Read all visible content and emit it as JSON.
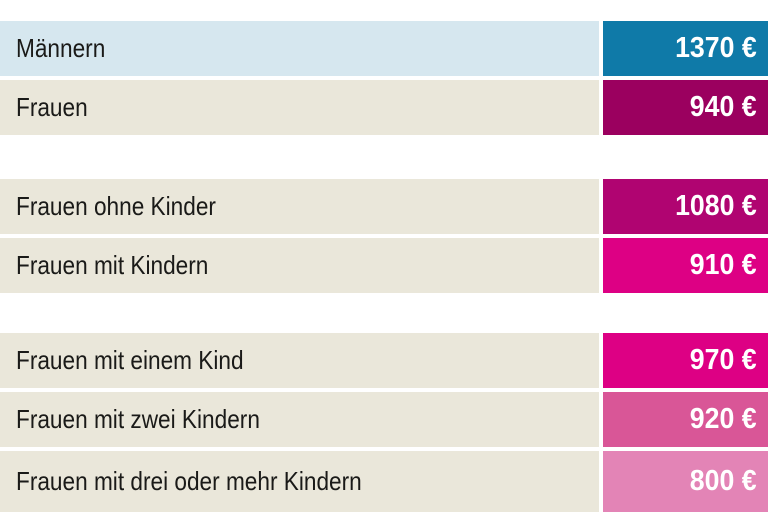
{
  "chart_data": {
    "type": "table",
    "title": "",
    "unit": "€",
    "groups": [
      {
        "rows": [
          {
            "label": "Männern",
            "value": 1370
          },
          {
            "label": "Frauen",
            "value": 940
          }
        ]
      },
      {
        "rows": [
          {
            "label": "Frauen ohne Kinder",
            "value": 1080
          },
          {
            "label": "Frauen mit Kindern",
            "value": 910
          }
        ]
      },
      {
        "rows": [
          {
            "label": "Frauen mit einem Kind",
            "value": 970
          },
          {
            "label": "Frauen mit zwei Kindern",
            "value": 920
          },
          {
            "label": "Frauen mit drei oder mehr Kindern",
            "value": 800
          }
        ]
      }
    ]
  },
  "colors": {
    "background": "#ffffff",
    "label_text": "#1a1a18",
    "value_text": "#ffffff",
    "row1_label_bg": "#d6e7ef",
    "beige_label_bg": "#eae7da",
    "badge_teal": "#0f7aa8",
    "badge_berry": "#9b005f",
    "badge_magenta_dark": "#b00471",
    "badge_magenta_bright": "#dd0084",
    "badge_pink_medium": "#d95697",
    "badge_pink_light": "#e384b6"
  },
  "rows": [
    {
      "label": "Männern",
      "value_display": "1370 €",
      "label_bg": "#d6e7ef",
      "badge_bg": "#0f7aa8"
    },
    {
      "label": "Frauen",
      "value_display": "940 €",
      "label_bg": "#eae7da",
      "badge_bg": "#9b005f"
    },
    {
      "label": "Frauen ohne Kinder",
      "value_display": "1080 €",
      "label_bg": "#eae7da",
      "badge_bg": "#b00471"
    },
    {
      "label": "Frauen mit Kindern",
      "value_display": "910 €",
      "label_bg": "#eae7da",
      "badge_bg": "#dd0084"
    },
    {
      "label": "Frauen mit einem Kind",
      "value_display": "970 €",
      "label_bg": "#eae7da",
      "badge_bg": "#dd0084"
    },
    {
      "label": "Frauen mit zwei Kindern",
      "value_display": "920 €",
      "label_bg": "#eae7da",
      "badge_bg": "#d95697"
    },
    {
      "label": "Frauen mit drei oder mehr Kindern",
      "value_display": "800 €",
      "label_bg": "#eae7da",
      "badge_bg": "#e384b6"
    }
  ]
}
